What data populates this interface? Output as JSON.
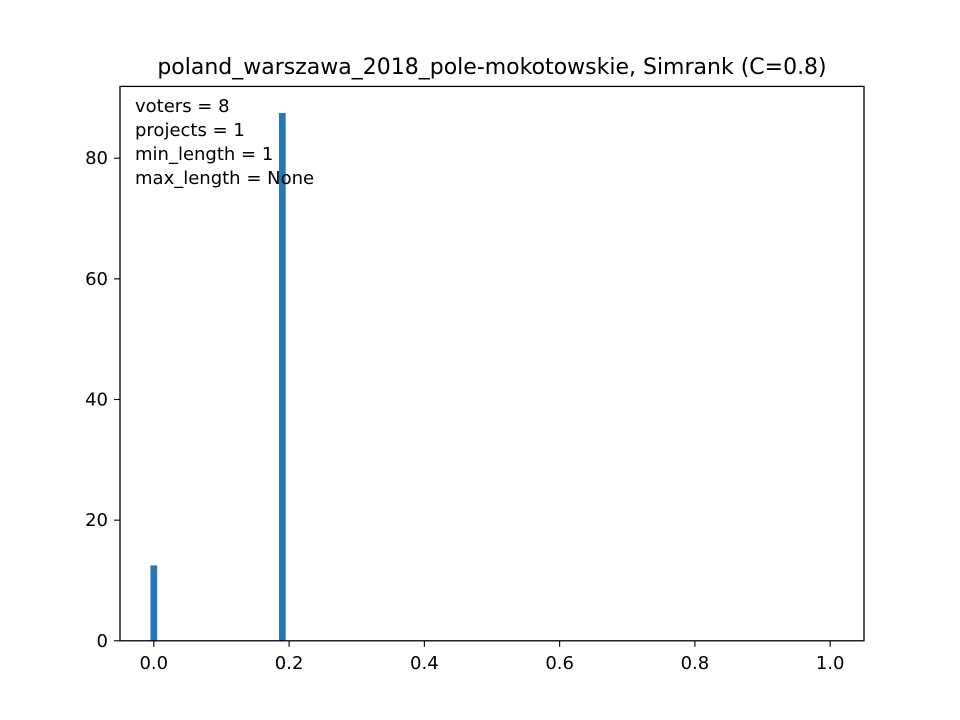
{
  "chart_data": {
    "type": "bar",
    "title": "poland_warszawa_2018_pole-mokotowskie, Simrank (C=0.8)",
    "xlabel": "",
    "ylabel": "",
    "xlim": [
      -0.05,
      1.05
    ],
    "ylim": [
      0,
      91.9
    ],
    "bar_width": 0.01,
    "bar_color": "#2878b5",
    "grid": false,
    "bars": [
      {
        "x": 0.0,
        "value": 12.5
      },
      {
        "x": 0.19,
        "value": 87.5
      }
    ],
    "x_ticks": [
      {
        "value": 0.0,
        "label": "0.0"
      },
      {
        "value": 0.2,
        "label": "0.2"
      },
      {
        "value": 0.4,
        "label": "0.4"
      },
      {
        "value": 0.6,
        "label": "0.6"
      },
      {
        "value": 0.8,
        "label": "0.8"
      },
      {
        "value": 1.0,
        "label": "1.0"
      }
    ],
    "y_ticks": [
      {
        "value": 0,
        "label": "0"
      },
      {
        "value": 20,
        "label": "20"
      },
      {
        "value": 40,
        "label": "40"
      },
      {
        "value": 60,
        "label": "60"
      },
      {
        "value": 80,
        "label": "80"
      }
    ],
    "annotations": [
      "voters = 8",
      "projects = 1",
      "min_length = 1",
      "max_length = None"
    ]
  }
}
